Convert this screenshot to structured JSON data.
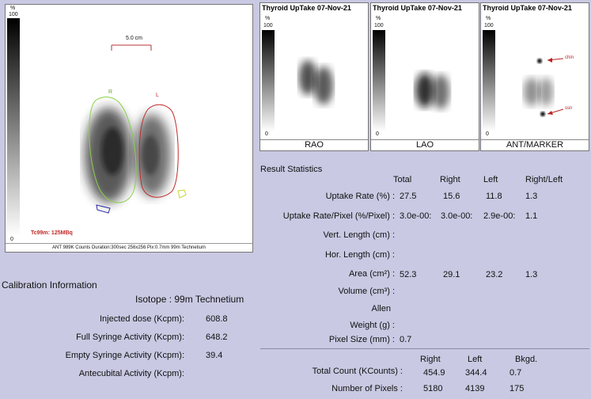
{
  "main_image": {
    "scale_top": "%",
    "scale_max": "100",
    "scale_min": "0",
    "ruler_label": "5.0 cm",
    "marker_right": "R",
    "marker_left": "L",
    "isotope_dose": "Tc99m: 125MBq",
    "footer": "ANT 989K Counts Duration:300sec 256x256 Pix:0.7mm 99m Technetium"
  },
  "views": [
    {
      "title": "Thyroid UpTake 07-Nov-21",
      "scale_top": "%",
      "scale_max": "100",
      "scale_min": "0",
      "label": "RAO"
    },
    {
      "title": "Thyroid UpTake 07-Nov-21",
      "scale_top": "%",
      "scale_max": "100",
      "scale_min": "0",
      "label": "LAO"
    },
    {
      "title": "Thyroid UpTake 07-Nov-21",
      "scale_top": "%",
      "scale_max": "100",
      "scale_min": "0",
      "label": "ANT/MARKER",
      "marker_chin": "chin",
      "marker_ssn": "ssn"
    }
  ],
  "results": {
    "heading": "Result Statistics",
    "columns": [
      "Total",
      "Right",
      "Left",
      "Right/Left"
    ],
    "rows": [
      {
        "label": "Uptake Rate (%) :",
        "values": [
          "27.5",
          "15.6",
          "11.8",
          "1.3"
        ]
      },
      {
        "label": "Uptake Rate/Pixel (%/Pixel) :",
        "values": [
          "3.0e-00:",
          "3.0e-00:",
          "2.9e-00:",
          "1.1"
        ]
      },
      {
        "label": "Vert. Length (cm) :",
        "values": [
          "",
          "",
          "",
          ""
        ]
      },
      {
        "label": "Hor. Length (cm) :",
        "values": [
          "",
          "",
          "",
          ""
        ]
      },
      {
        "label": "Area (cm²) :",
        "values": [
          "52.3",
          "29.1",
          "23.2",
          "1.3"
        ]
      },
      {
        "label": "Volume (cm³) :",
        "values": [
          "",
          "",
          "",
          ""
        ]
      },
      {
        "label": "Allen",
        "values": [
          "",
          "",
          "",
          ""
        ]
      },
      {
        "label": "Weight (g) :",
        "values": [
          "",
          "",
          "",
          ""
        ]
      },
      {
        "label": "Pixel Size (mm) :",
        "values": [
          "0.7",
          "",
          "",
          ""
        ]
      }
    ]
  },
  "counts": {
    "columns": [
      "Right",
      "Left",
      "Bkgd."
    ],
    "rows": [
      {
        "label": "Total Count (KCounts) :",
        "values": [
          "454.9",
          "344.4",
          "0.7"
        ]
      },
      {
        "label": "Number of Pixels :",
        "values": [
          "5180",
          "4139",
          "175"
        ]
      }
    ]
  },
  "calibration": {
    "heading": "Calibration Information",
    "isotope": "Isotope : 99m Technetium",
    "rows": [
      {
        "label": "Injected dose (Kcpm):",
        "value": "608.8"
      },
      {
        "label": "Full Syringe Activity (Kcpm):",
        "value": "648.2"
      },
      {
        "label": "Empty Syringe Activity (Kcpm):",
        "value": "39.4"
      },
      {
        "label": "Antecubital Activity (Kcpm):",
        "value": ""
      }
    ]
  }
}
